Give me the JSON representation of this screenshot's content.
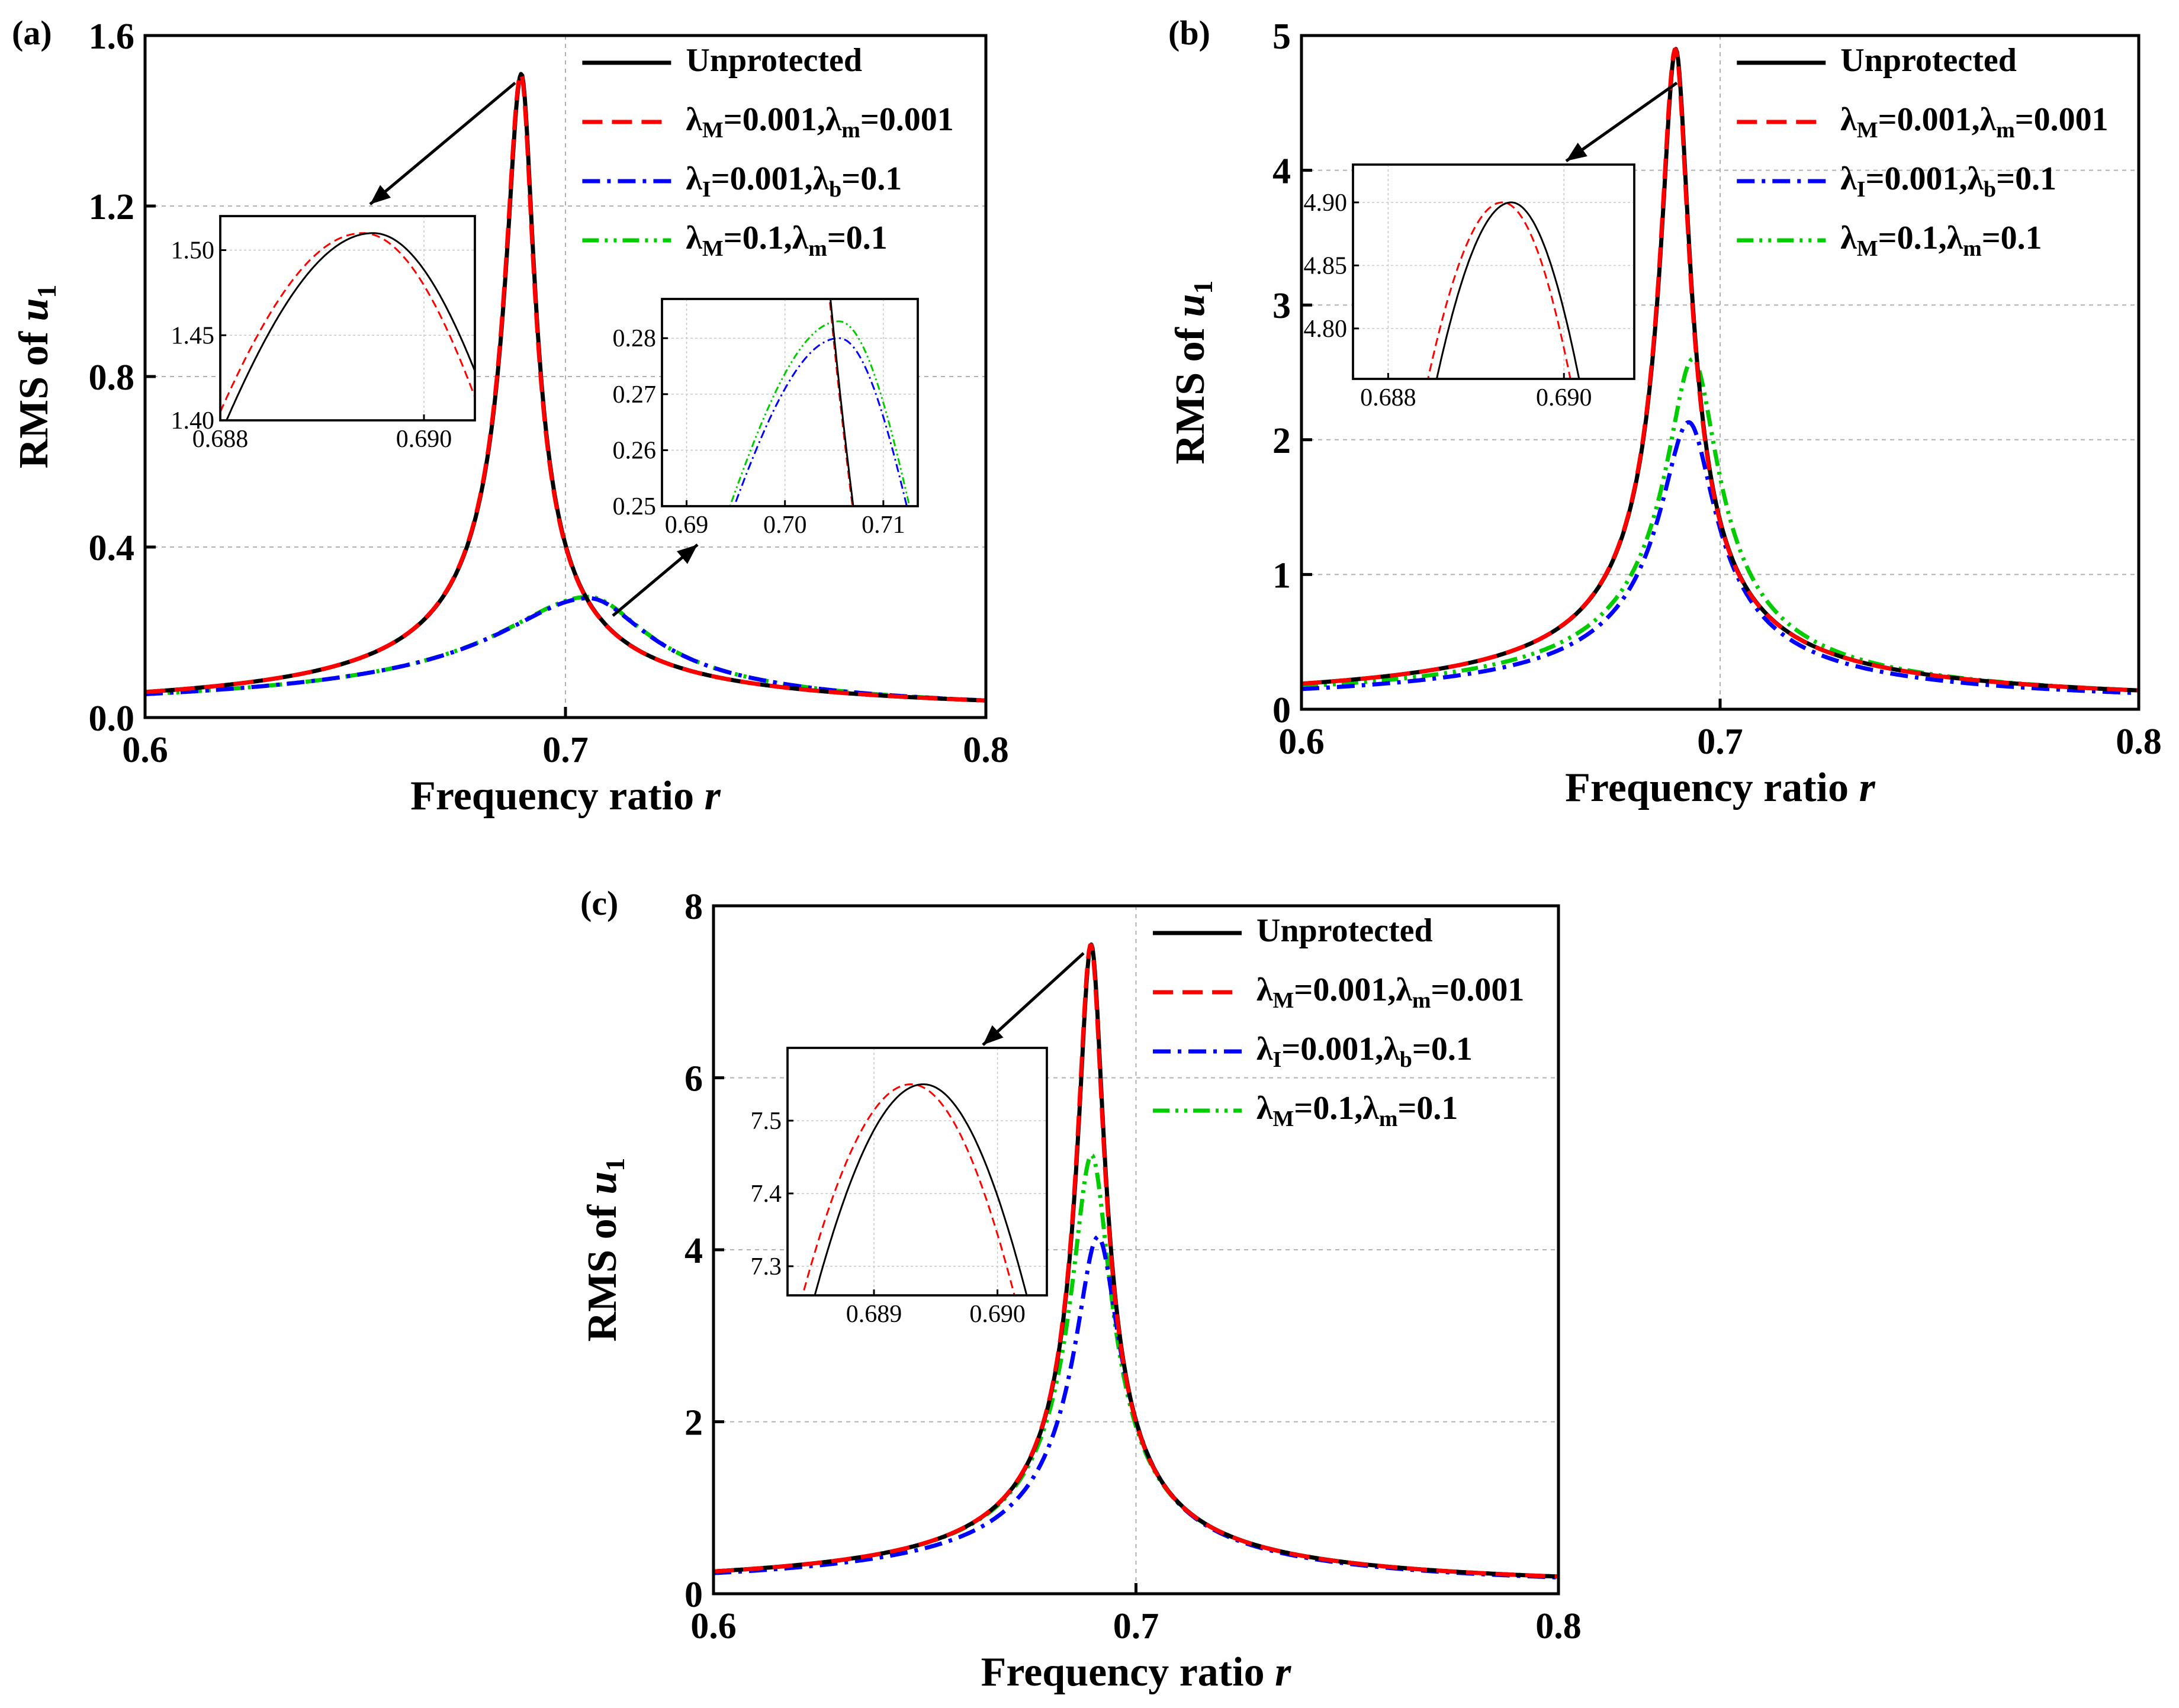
{
  "figure": {
    "legend_labels": [
      {
        "base": "Unprotected",
        "parts": []
      },
      {
        "base": "",
        "parts": [
          [
            "λ",
            "M",
            "=0.001,"
          ],
          [
            "λ",
            "m",
            "=0.001"
          ]
        ]
      },
      {
        "base": "",
        "parts": [
          [
            "λ",
            "I",
            "=0.001,"
          ],
          [
            "λ",
            "b",
            "=0.1"
          ]
        ]
      },
      {
        "base": "",
        "parts": [
          [
            "λ",
            "M",
            "=0.1,"
          ],
          [
            "λ",
            "m",
            "=0.1"
          ]
        ]
      }
    ]
  },
  "chart_data": [
    {
      "panel_label": "(a)",
      "type": "line",
      "xlabel": "Frequency ratio",
      "xlabel_var": "r",
      "ylabel": "RMS of",
      "ylabel_var": "u",
      "ylabel_sub": "1",
      "xlim": [
        0.6,
        0.8
      ],
      "ylim": [
        0.0,
        1.6
      ],
      "xticks": [
        "0.6",
        "0.7",
        "0.8"
      ],
      "yticks": [
        "0.0",
        "0.4",
        "0.8",
        "1.2",
        "1.6"
      ],
      "legend_position": "top-right",
      "series": [
        {
          "name": "Unprotected",
          "color": "#000000",
          "style": "solid",
          "peak_x": 0.6895,
          "peak_y": 1.51,
          "low_x": 0.6,
          "low_y": 0.06,
          "high_x": 0.8,
          "high_y": 0.04
        },
        {
          "name": "λM=0.001,λm=0.001",
          "color": "#ff0000",
          "style": "dash",
          "peak_x": 0.6894,
          "peak_y": 1.51,
          "low_x": 0.6,
          "low_y": 0.06,
          "high_x": 0.8,
          "high_y": 0.04
        },
        {
          "name": "λI=0.001,λb=0.1",
          "color": "#0000ff",
          "style": "dashdot",
          "peak_x": 0.7055,
          "peak_y": 0.28,
          "low_x": 0.6,
          "low_y": 0.055,
          "high_x": 0.8,
          "high_y": 0.04
        },
        {
          "name": "λM=0.1,λm=0.1",
          "color": "#00cc00",
          "style": "dashdotdot",
          "peak_x": 0.7055,
          "peak_y": 0.283,
          "low_x": 0.6,
          "low_y": 0.055,
          "high_x": 0.8,
          "high_y": 0.04
        }
      ],
      "insets": [
        {
          "xlim": [
            0.688,
            0.6905
          ],
          "ylim": [
            1.4,
            1.52
          ],
          "xticks": [
            "0.688",
            "0.690"
          ],
          "xtick_vals": [
            0.688,
            0.69
          ],
          "yticks": [
            "1.40",
            "1.45",
            "1.50"
          ],
          "ytick_vals": [
            1.4,
            1.45,
            1.5
          ],
          "series": [
            0,
            1
          ]
        },
        {
          "xlim": [
            0.6875,
            0.7135
          ],
          "ylim": [
            0.25,
            0.287
          ],
          "xticks": [
            "0.69",
            "0.70",
            "0.71"
          ],
          "xtick_vals": [
            0.69,
            0.7,
            0.71
          ],
          "yticks": [
            "0.25",
            "0.26",
            "0.27",
            "0.28"
          ],
          "ytick_vals": [
            0.25,
            0.26,
            0.27,
            0.28
          ],
          "series": [
            0,
            1,
            2,
            3
          ]
        }
      ]
    },
    {
      "panel_label": "(b)",
      "type": "line",
      "xlabel": "Frequency ratio",
      "xlabel_var": "r",
      "ylabel": "RMS of",
      "ylabel_var": "u",
      "ylabel_sub": "1",
      "xlim": [
        0.6,
        0.8
      ],
      "ylim": [
        0,
        5
      ],
      "xticks": [
        "0.6",
        "0.7",
        "0.8"
      ],
      "yticks": [
        "0",
        "1",
        "2",
        "3",
        "4",
        "5"
      ],
      "legend_position": "top-right",
      "series": [
        {
          "name": "Unprotected",
          "color": "#000000",
          "style": "solid",
          "peak_x": 0.6894,
          "peak_y": 4.9,
          "low_x": 0.6,
          "low_y": 0.19,
          "high_x": 0.8,
          "high_y": 0.14
        },
        {
          "name": "λM=0.001,λm=0.001",
          "color": "#ff0000",
          "style": "dash",
          "peak_x": 0.6893,
          "peak_y": 4.9,
          "low_x": 0.6,
          "low_y": 0.19,
          "high_x": 0.8,
          "high_y": 0.14
        },
        {
          "name": "λI=0.001,λb=0.1",
          "color": "#0000ff",
          "style": "dashdot",
          "peak_x": 0.6925,
          "peak_y": 2.13,
          "low_x": 0.6,
          "low_y": 0.15,
          "high_x": 0.8,
          "high_y": 0.12
        },
        {
          "name": "λM=0.1,λm=0.1",
          "color": "#00cc00",
          "style": "dashdotdot",
          "peak_x": 0.6935,
          "peak_y": 2.6,
          "low_x": 0.6,
          "low_y": 0.17,
          "high_x": 0.8,
          "high_y": 0.14
        }
      ],
      "insets": [
        {
          "xlim": [
            0.6876,
            0.6908
          ],
          "ylim": [
            4.76,
            4.93
          ],
          "xticks": [
            "0.688",
            "0.690"
          ],
          "xtick_vals": [
            0.688,
            0.69
          ],
          "yticks": [
            "4.80",
            "4.85",
            "4.90"
          ],
          "ytick_vals": [
            4.8,
            4.85,
            4.9
          ],
          "series": [
            0,
            1
          ]
        }
      ]
    },
    {
      "panel_label": "(c)",
      "type": "line",
      "xlabel": "Frequency ratio",
      "xlabel_var": "r",
      "ylabel": "RMS of",
      "ylabel_var": "u",
      "ylabel_sub": "1",
      "xlim": [
        0.6,
        0.8
      ],
      "ylim": [
        0,
        8
      ],
      "xticks": [
        "0.6",
        "0.7",
        "0.8"
      ],
      "yticks": [
        "0",
        "2",
        "4",
        "6",
        "8"
      ],
      "legend_position": "top-right",
      "series": [
        {
          "name": "Unprotected",
          "color": "#000000",
          "style": "solid",
          "peak_x": 0.6894,
          "peak_y": 7.55,
          "low_x": 0.6,
          "low_y": 0.26,
          "high_x": 0.8,
          "high_y": 0.2
        },
        {
          "name": "λM=0.001,λm=0.001",
          "color": "#ff0000",
          "style": "dash",
          "peak_x": 0.6893,
          "peak_y": 7.55,
          "low_x": 0.6,
          "low_y": 0.26,
          "high_x": 0.8,
          "high_y": 0.2
        },
        {
          "name": "λI=0.001,λb=0.1",
          "color": "#0000ff",
          "style": "dashdot",
          "peak_x": 0.691,
          "peak_y": 4.15,
          "low_x": 0.6,
          "low_y": 0.24,
          "high_x": 0.8,
          "high_y": 0.19
        },
        {
          "name": "λM=0.1,λm=0.1",
          "color": "#00cc00",
          "style": "dashdotdot",
          "peak_x": 0.6895,
          "peak_y": 5.1,
          "low_x": 0.6,
          "low_y": 0.26,
          "high_x": 0.8,
          "high_y": 0.2
        }
      ],
      "insets": [
        {
          "xlim": [
            0.6883,
            0.6904
          ],
          "ylim": [
            7.26,
            7.6
          ],
          "xticks": [
            "0.689",
            "0.690"
          ],
          "xtick_vals": [
            0.689,
            0.69
          ],
          "yticks": [
            "7.3",
            "7.4",
            "7.5"
          ],
          "ytick_vals": [
            7.3,
            7.4,
            7.5
          ],
          "series": [
            0,
            1
          ]
        }
      ]
    }
  ]
}
